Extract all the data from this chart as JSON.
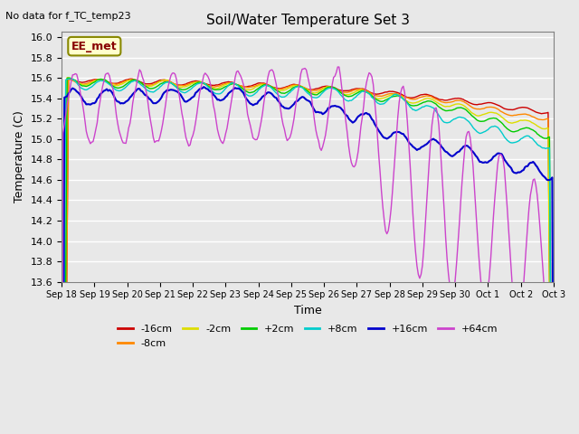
{
  "title": "Soil/Water Temperature Set 3",
  "ylabel": "Temperature (C)",
  "xlabel": "Time",
  "note": "No data for f_TC_temp23",
  "label_EE": "EE_met",
  "legend_labels": [
    "-16cm",
    "-8cm",
    "-2cm",
    "+2cm",
    "+8cm",
    "+16cm",
    "+64cm"
  ],
  "legend_colors": [
    "#cc0000",
    "#ff8800",
    "#dddd00",
    "#00cc00",
    "#00cccc",
    "#0000cc",
    "#cc44cc"
  ],
  "background_color": "#e8e8e8",
  "fig_background": "#e8e8e8",
  "ylim": [
    13.6,
    16.05
  ],
  "xlim_start": 0,
  "xlim_end": 360,
  "xtick_labels": [
    "Sep 18",
    "Sep 19",
    "Sep 20",
    "Sep 21",
    "Sep 22",
    "Sep 23",
    "Sep 24",
    "Sep 25",
    "Sep 26",
    "Sep 27",
    "Sep 28",
    "Sep 29",
    "Sep 30",
    "Oct 1",
    "Oct 2",
    "Oct 3"
  ],
  "xtick_positions": [
    0,
    24,
    48,
    72,
    96,
    120,
    144,
    168,
    192,
    216,
    240,
    264,
    288,
    312,
    336,
    360
  ],
  "ytick_labels": [
    "13.6",
    "13.8",
    "14.0",
    "14.2",
    "14.4",
    "14.6",
    "14.8",
    "15.0",
    "15.2",
    "15.4",
    "15.6",
    "15.8",
    "16.0"
  ],
  "ytick_values": [
    13.6,
    13.8,
    14.0,
    14.2,
    14.4,
    14.6,
    14.8,
    15.0,
    15.2,
    15.4,
    15.6,
    15.8,
    16.0
  ]
}
